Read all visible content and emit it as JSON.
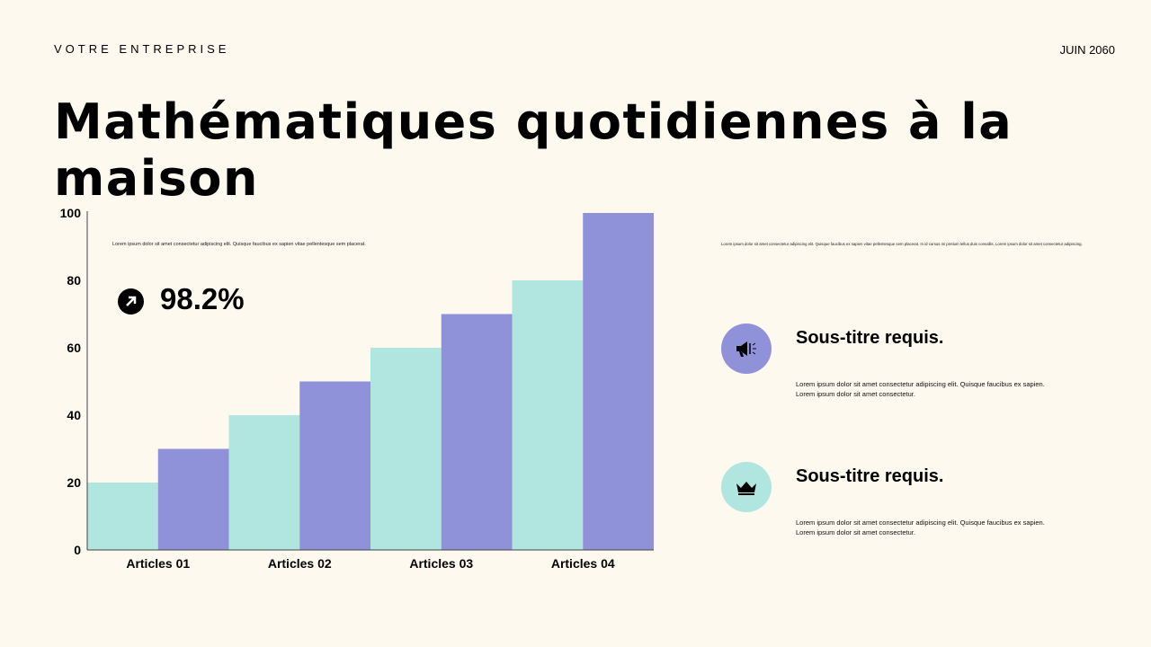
{
  "header": {
    "company": "VOTRE ENTREPRISE",
    "date": "JUIN 2060",
    "title": "Mathématiques quotidiennes à la maison"
  },
  "chart_note": "Lorem ipsum dolor sit amet consectetur adipiscing elit. Quisque faucibus ex sapien vitae pellentesque sem placerat.",
  "stat": {
    "value": "98.2%",
    "icon": "arrow-up-right-icon"
  },
  "right_note": "Lorem ipsum dolor sit amet consectetur adipiscing elit. Quisque faucibus ex sapien vitae pellentesque sem placerat. In id cursus mi pretium tellus duis convallis. Lorem ipsum dolor sit amet consectetur adipiscing.",
  "features": [
    {
      "icon": "megaphone-icon",
      "color": "#8f92d8",
      "title": "Sous-titre requis.",
      "line1": "Lorem ipsum dolor sit amet consectetur adipiscing elit. Quisque faucibus ex sapien.",
      "line2": "Lorem ipsum dolor sit amet consectetur."
    },
    {
      "icon": "crown-icon",
      "color": "#b0e5e0",
      "title": "Sous-titre requis.",
      "line1": "Lorem ipsum dolor sit amet consectetur adipiscing elit. Quisque faucibus ex sapien.",
      "line2": "Lorem ipsum dolor sit amet consectetur."
    }
  ],
  "chart_data": {
    "type": "bar",
    "categories": [
      "Articles 01",
      "Articles 02",
      "Articles 03",
      "Articles 04"
    ],
    "series": [
      {
        "values": [
          20,
          40,
          60,
          80
        ],
        "color": "#b0e5e0"
      },
      {
        "values": [
          30,
          50,
          70,
          100
        ],
        "color": "#8f92d8"
      }
    ],
    "ylim": [
      0,
      100
    ],
    "yticks": [
      0,
      20,
      40,
      60,
      80,
      100
    ],
    "grid": false
  }
}
